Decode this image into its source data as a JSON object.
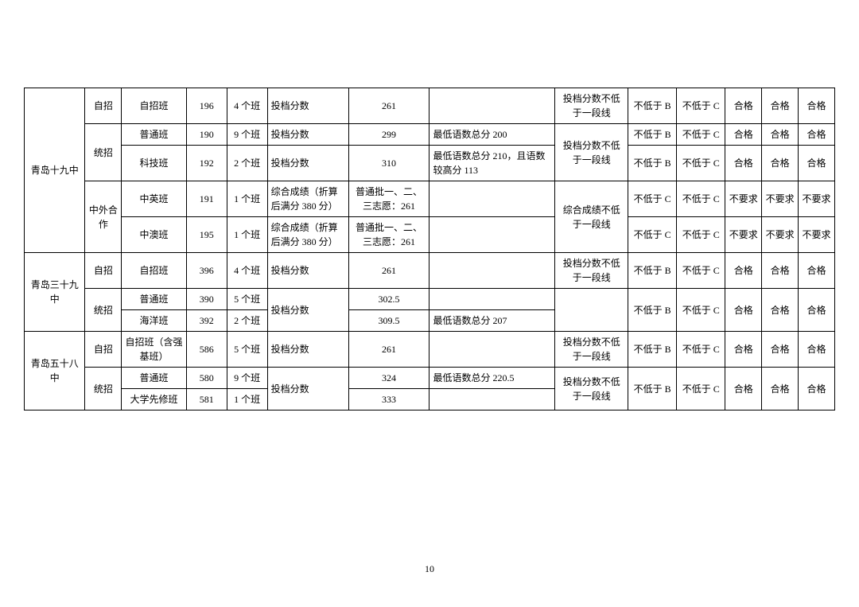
{
  "page_number": "10",
  "colors": {
    "border": "#000000",
    "text": "#000000",
    "bg": "#ffffff"
  },
  "font": {
    "family": "SimSun",
    "size_pt": 9
  },
  "col_widths_pct": [
    7.5,
    4.5,
    8,
    5,
    5,
    10,
    10,
    15.5,
    9,
    6,
    6,
    4.5,
    4.5,
    4.5
  ],
  "rows": [
    {
      "school": "青岛十九中",
      "school_rowspan": 5,
      "type": "自招",
      "type_rowspan": 1,
      "class": "自招班",
      "code": "196",
      "count": "4 个班",
      "score_label": "投档分数",
      "score": "261",
      "note": "",
      "req": "投档分数不低于一段线",
      "req_rowspan": 1,
      "c9": "不低于 B",
      "c10": "不低于 C",
      "c11": "合格",
      "c12": "合格",
      "c13": "合格"
    },
    {
      "type": "统招",
      "type_rowspan": 2,
      "class": "普通班",
      "code": "190",
      "count": "9 个班",
      "score_label": "投档分数",
      "score": "299",
      "note": "最低语数总分 200",
      "req": "投档分数不低于一段线",
      "req_rowspan": 2,
      "c9": "不低于 B",
      "c10": "不低于 C",
      "c11": "合格",
      "c12": "合格",
      "c13": "合格"
    },
    {
      "class": "科技班",
      "code": "192",
      "count": "2 个班",
      "score_label": "投档分数",
      "score": "310",
      "note": "最低语数总分 210，且语数较高分 113",
      "c9": "不低于 B",
      "c10": "不低于 C",
      "c11": "合格",
      "c12": "合格",
      "c13": "合格"
    },
    {
      "type": "中外合作",
      "type_rowspan": 2,
      "class": "中英班",
      "code": "191",
      "count": "1 个班",
      "score_label": "综合成绩（折算后满分 380 分）",
      "score": "普通批一、二、三志愿：261",
      "note": "",
      "req": "综合成绩不低于一段线",
      "req_rowspan": 2,
      "c9": "不低于 C",
      "c10": "不低于 C",
      "c11": "不要求",
      "c12": "不要求",
      "c13": "不要求"
    },
    {
      "class": "中澳班",
      "code": "195",
      "count": "1 个班",
      "score_label": "综合成绩（折算后满分 380 分）",
      "score": "普通批一、二、三志愿：261",
      "note": "",
      "c9": "不低于 C",
      "c10": "不低于 C",
      "c11": "不要求",
      "c12": "不要求",
      "c13": "不要求"
    },
    {
      "school": "青岛三十九中",
      "school_rowspan": 3,
      "type": "自招",
      "type_rowspan": 1,
      "class": "自招班",
      "code": "396",
      "count": "4 个班",
      "score_label": "投档分数",
      "score": "261",
      "note": "",
      "req": "投档分数不低于一段线",
      "req_rowspan": 1,
      "c9": "不低于 B",
      "c10": "不低于 C",
      "c11": "合格",
      "c12": "合格",
      "c13": "合格"
    },
    {
      "type": "统招",
      "type_rowspan": 2,
      "class": "普通班",
      "code": "390",
      "count": "5 个班",
      "score_label": "投档分数",
      "score_label_rowspan": 2,
      "score": "302.5",
      "note": "",
      "req": "",
      "req_rowspan": 2,
      "c9": "不低于 B",
      "c9_rowspan": 2,
      "c10": "不低于 C",
      "c10_rowspan": 2,
      "c11": "合格",
      "c11_rowspan": 2,
      "c12": "合格",
      "c12_rowspan": 2,
      "c13": "合格",
      "c13_rowspan": 2
    },
    {
      "class": "海洋班",
      "code": "392",
      "count": "2 个班",
      "score": "309.5",
      "note": "最低语数总分 207"
    },
    {
      "school": "青岛五十八中",
      "school_rowspan": 3,
      "type": "自招",
      "type_rowspan": 1,
      "class": "自招班（含强基班）",
      "code": "586",
      "count": "5 个班",
      "score_label": "投档分数",
      "score": "261",
      "note": "",
      "req": "投档分数不低于一段线",
      "req_rowspan": 1,
      "c9": "不低于 B",
      "c10": "不低于 C",
      "c11": "合格",
      "c12": "合格",
      "c13": "合格"
    },
    {
      "type": "统招",
      "type_rowspan": 2,
      "class": "普通班",
      "code": "580",
      "count": "9 个班",
      "score_label": "投档分数",
      "score_label_rowspan": 2,
      "score": "324",
      "note": "最低语数总分 220.5",
      "req": "投档分数不低于一段线",
      "req_rowspan": 2,
      "c9": "不低于 B",
      "c9_rowspan": 2,
      "c10": "不低于 C",
      "c10_rowspan": 2,
      "c11": "合格",
      "c11_rowspan": 2,
      "c12": "合格",
      "c12_rowspan": 2,
      "c13": "合格",
      "c13_rowspan": 2
    },
    {
      "class": "大学先修班",
      "code": "581",
      "count": "1 个班",
      "score": "333",
      "note": ""
    }
  ]
}
